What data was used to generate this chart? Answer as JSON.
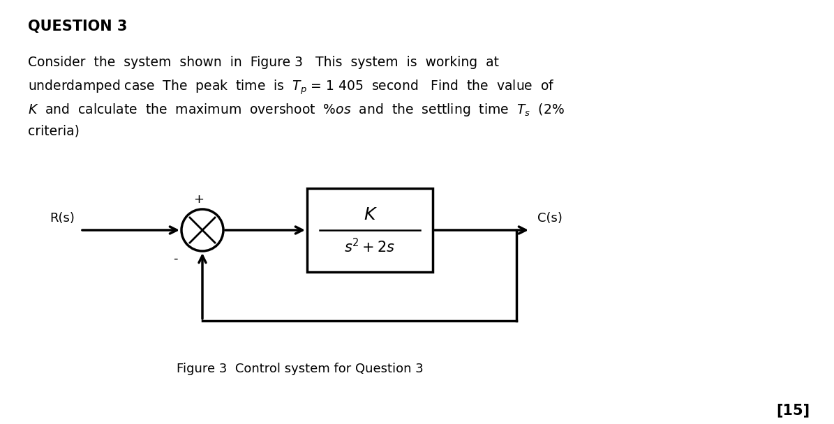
{
  "bg_color": "#ffffff",
  "title_text": "QUESTION 3",
  "title_fontsize": 15,
  "body_fontsize": 13.5,
  "caption_text": "Figure 3  Control system for Question 3",
  "caption_fontsize": 13,
  "points_text": "[15]",
  "points_fontsize": 15,
  "diagram": {
    "input_label": "R(s)",
    "output_label": "C(s)",
    "plus_label": "+",
    "minus_label": "-",
    "tf_numerator": "K",
    "tf_denominator": "$s^2 + 2s$"
  }
}
